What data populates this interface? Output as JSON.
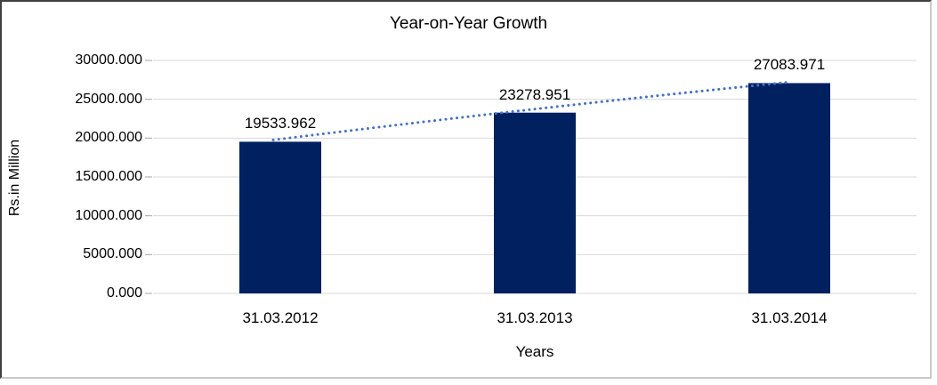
{
  "chart_data": {
    "type": "bar",
    "title": "Year-on-Year Growth",
    "xlabel": "Years",
    "ylabel": "Rs.in Million",
    "categories": [
      "31.03.2012",
      "31.03.2013",
      "31.03.2014"
    ],
    "values": [
      19533.962,
      23278.951,
      27083.971
    ],
    "data_labels": [
      "19533.962",
      "23278.951",
      "27083.971"
    ],
    "ylim": [
      0,
      30000
    ],
    "ytick_step": 5000,
    "ytick_labels": [
      "0.000",
      "5000.000",
      "10000.000",
      "15000.000",
      "20000.000",
      "25000.000",
      "30000.000"
    ],
    "grid": true,
    "legend_position": "none",
    "bar_color": "#002060",
    "gridline_color": "#d9d9d9",
    "tick_color": "#a6a6a6",
    "trendline": {
      "style": "dotted",
      "color": "#4472c4"
    }
  }
}
